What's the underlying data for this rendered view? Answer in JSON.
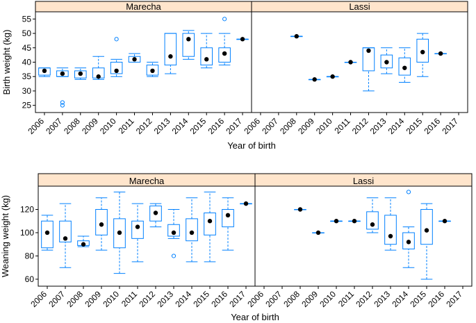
{
  "colors": {
    "strip_bg": "#ffe5cc",
    "box": "#0080ff",
    "median": "#000000",
    "frame": "#000000"
  },
  "chart_data": [
    {
      "type": "boxplot",
      "panels": [
        "Marecha",
        "Lassi"
      ],
      "xlabel": "Year of birth",
      "ylabel": "Birth weight (kg)",
      "categories": [
        "2006",
        "2007",
        "2008",
        "2009",
        "2010",
        "2011",
        "2012",
        "2013",
        "2014",
        "2015",
        "2016",
        "2017"
      ],
      "yticks": [
        25,
        30,
        35,
        40,
        45,
        50,
        55
      ],
      "ylim": [
        22.5,
        57.5
      ],
      "series": [
        {
          "name": "Marecha",
          "boxes": [
            {
              "cat": "2006",
              "min": 35,
              "q1": 35.5,
              "median": 37,
              "q3": 38,
              "max": 38,
              "outliers": []
            },
            {
              "cat": "2007",
              "min": 35,
              "q1": 35,
              "median": 36,
              "q3": 37,
              "max": 38,
              "outliers": [
                26,
                25
              ]
            },
            {
              "cat": "2008",
              "min": 34,
              "q1": 34.5,
              "median": 36,
              "q3": 37,
              "max": 38,
              "outliers": []
            },
            {
              "cat": "2009",
              "min": 34,
              "q1": 34.5,
              "median": 35,
              "q3": 38,
              "max": 42,
              "outliers": []
            },
            {
              "cat": "2010",
              "min": 35,
              "q1": 36,
              "median": 37,
              "q3": 40,
              "max": 41,
              "outliers": [
                48
              ]
            },
            {
              "cat": "2011",
              "min": 40,
              "q1": 40,
              "median": 41,
              "q3": 42,
              "max": 43,
              "outliers": []
            },
            {
              "cat": "2012",
              "min": 35,
              "q1": 35.5,
              "median": 37,
              "q3": 39,
              "max": 40,
              "outliers": []
            },
            {
              "cat": "2013",
              "min": 36,
              "q1": 39,
              "median": 42,
              "q3": 50,
              "max": 50,
              "outliers": []
            },
            {
              "cat": "2014",
              "min": 41,
              "q1": 42,
              "median": 48,
              "q3": 50,
              "max": 51,
              "outliers": []
            },
            {
              "cat": "2015",
              "min": 38,
              "q1": 39,
              "median": 41,
              "q3": 45,
              "max": 50,
              "outliers": []
            },
            {
              "cat": "2016",
              "min": 39,
              "q1": 40,
              "median": 43,
              "q3": 45,
              "max": 50,
              "outliers": [
                55
              ]
            },
            {
              "cat": "2017",
              "min": 48,
              "q1": 48,
              "median": 48,
              "q3": 48,
              "max": 48,
              "outliers": []
            }
          ]
        },
        {
          "name": "Lassi",
          "boxes": [
            {
              "cat": "2008",
              "min": 49,
              "q1": 49,
              "median": 49,
              "q3": 49,
              "max": 49,
              "outliers": []
            },
            {
              "cat": "2009",
              "min": 34,
              "q1": 34,
              "median": 34,
              "q3": 34,
              "max": 34,
              "outliers": []
            },
            {
              "cat": "2010",
              "min": 35,
              "q1": 35,
              "median": 35,
              "q3": 35,
              "max": 35,
              "outliers": []
            },
            {
              "cat": "2011",
              "min": 40,
              "q1": 40,
              "median": 40,
              "q3": 40,
              "max": 40,
              "outliers": []
            },
            {
              "cat": "2012",
              "min": 30,
              "q1": 37,
              "median": 44,
              "q3": 45,
              "max": 45,
              "outliers": []
            },
            {
              "cat": "2013",
              "min": 36,
              "q1": 38,
              "median": 40,
              "q3": 42.5,
              "max": 45,
              "outliers": []
            },
            {
              "cat": "2014",
              "min": 33,
              "q1": 35.5,
              "median": 38,
              "q3": 41.5,
              "max": 45,
              "outliers": []
            },
            {
              "cat": "2015",
              "min": 35,
              "q1": 40,
              "median": 43.5,
              "q3": 48,
              "max": 50,
              "outliers": []
            },
            {
              "cat": "2016",
              "min": 43,
              "q1": 43,
              "median": 43,
              "q3": 43,
              "max": 43,
              "outliers": []
            }
          ]
        }
      ]
    },
    {
      "type": "boxplot",
      "panels": [
        "Marecha",
        "Lassi"
      ],
      "xlabel": "Year of birth",
      "ylabel": "Weaning weight (kg)",
      "categories": [
        "2006",
        "2007",
        "2008",
        "2009",
        "2010",
        "2011",
        "2012",
        "2013",
        "2014",
        "2015",
        "2016",
        "2017"
      ],
      "yticks": [
        60,
        80,
        100,
        120
      ],
      "ylim": [
        54,
        140
      ],
      "series": [
        {
          "name": "Marecha",
          "boxes": [
            {
              "cat": "2006",
              "min": 85,
              "q1": 87,
              "median": 100,
              "q3": 110,
              "max": 115,
              "outliers": []
            },
            {
              "cat": "2007",
              "min": 70,
              "q1": 92,
              "median": 95,
              "q3": 110,
              "max": 125,
              "outliers": []
            },
            {
              "cat": "2008",
              "min": 88,
              "q1": 89,
              "median": 90,
              "q3": 93,
              "max": 97,
              "outliers": []
            },
            {
              "cat": "2009",
              "min": 85,
              "q1": 98,
              "median": 107,
              "q3": 120,
              "max": 130,
              "outliers": []
            },
            {
              "cat": "2010",
              "min": 65,
              "q1": 87,
              "median": 100,
              "q3": 112,
              "max": 135,
              "outliers": []
            },
            {
              "cat": "2011",
              "min": 75,
              "q1": 95,
              "median": 105,
              "q3": 110,
              "max": 125,
              "outliers": []
            },
            {
              "cat": "2012",
              "min": 105,
              "q1": 110,
              "median": 117,
              "q3": 123,
              "max": 125,
              "outliers": []
            },
            {
              "cat": "2013",
              "min": 95,
              "q1": 97,
              "median": 100,
              "q3": 107,
              "max": 120,
              "outliers": [
                80
              ]
            },
            {
              "cat": "2014",
              "min": 75,
              "q1": 93,
              "median": 100,
              "q3": 112,
              "max": 130,
              "outliers": []
            },
            {
              "cat": "2015",
              "min": 75,
              "q1": 98,
              "median": 110,
              "q3": 117,
              "max": 135,
              "outliers": []
            },
            {
              "cat": "2016",
              "min": 85,
              "q1": 105,
              "median": 115,
              "q3": 120,
              "max": 130,
              "outliers": []
            },
            {
              "cat": "2017",
              "min": 125,
              "q1": 125,
              "median": 125,
              "q3": 125,
              "max": 125,
              "outliers": []
            }
          ]
        },
        {
          "name": "Lassi",
          "boxes": [
            {
              "cat": "2008",
              "min": 120,
              "q1": 120,
              "median": 120,
              "q3": 120,
              "max": 120,
              "outliers": []
            },
            {
              "cat": "2009",
              "min": 100,
              "q1": 100,
              "median": 100,
              "q3": 100,
              "max": 100,
              "outliers": []
            },
            {
              "cat": "2010",
              "min": 110,
              "q1": 110,
              "median": 110,
              "q3": 110,
              "max": 110,
              "outliers": []
            },
            {
              "cat": "2011",
              "min": 110,
              "q1": 110,
              "median": 110,
              "q3": 110,
              "max": 110,
              "outliers": []
            },
            {
              "cat": "2012",
              "min": 100,
              "q1": 103,
              "median": 107,
              "q3": 118,
              "max": 130,
              "outliers": []
            },
            {
              "cat": "2013",
              "min": 85,
              "q1": 90,
              "median": 97,
              "q3": 115,
              "max": 130,
              "outliers": []
            },
            {
              "cat": "2014",
              "min": 70,
              "q1": 86,
              "median": 92,
              "q3": 100,
              "max": 105,
              "outliers": [
                135
              ]
            },
            {
              "cat": "2015",
              "min": 60,
              "q1": 90,
              "median": 102,
              "q3": 120,
              "max": 125,
              "outliers": []
            },
            {
              "cat": "2016",
              "min": 110,
              "q1": 110,
              "median": 110,
              "q3": 110,
              "max": 110,
              "outliers": []
            }
          ]
        }
      ]
    }
  ]
}
